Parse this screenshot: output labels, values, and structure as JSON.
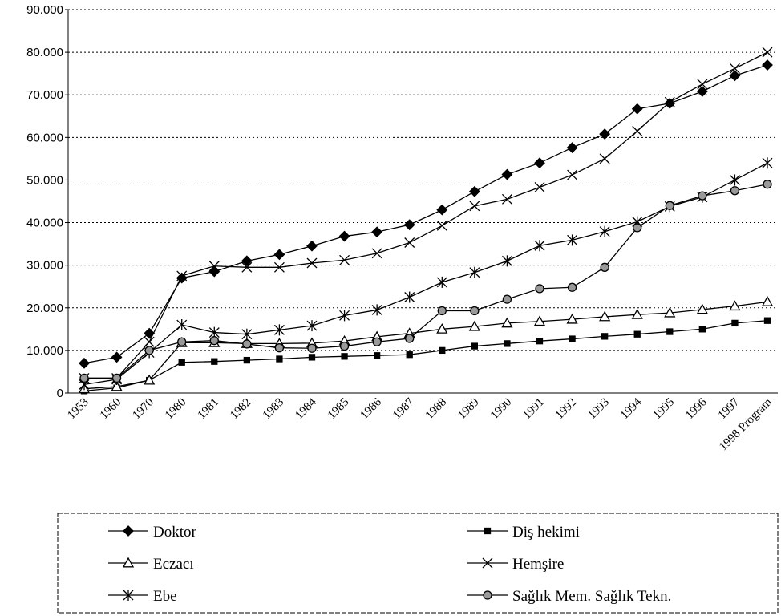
{
  "chart_data": {
    "type": "line",
    "categories": [
      "1953",
      "1960",
      "1970",
      "1980",
      "1981",
      "1982",
      "1983",
      "1984",
      "1985",
      "1986",
      "1987",
      "1988",
      "1989",
      "1990",
      "1991",
      "1992",
      "1993",
      "1994",
      "1995",
      "1996",
      "1997",
      "1998 Program"
    ],
    "ylim": [
      0,
      90000
    ],
    "yticks": [
      0,
      {
        "value": 10000,
        "label": "10.000"
      },
      {
        "value": 20000,
        "label": "20.000"
      },
      {
        "value": 30000,
        "label": "30.000"
      },
      {
        "value": 40000,
        "label": "40.000"
      },
      {
        "value": 50000,
        "label": "50.000"
      },
      {
        "value": 60000,
        "label": "60.000"
      },
      {
        "value": 70000,
        "label": "70.000"
      },
      {
        "value": 80000,
        "label": "80.000"
      },
      {
        "value": 90000,
        "label": "90.000"
      }
    ],
    "grid": true,
    "series": [
      {
        "name": "Doktor",
        "color": "#000000",
        "marker": "diamond",
        "values": [
          7000,
          8400,
          14000,
          27000,
          28500,
          31000,
          32500,
          34500,
          36800,
          37800,
          39500,
          43000,
          47300,
          51300,
          54000,
          57600,
          60800,
          66700,
          68000,
          70800,
          74500,
          77000
        ]
      },
      {
        "name": "Diş hekimi",
        "color": "#000000",
        "marker": "square",
        "values": [
          500,
          1200,
          3000,
          7200,
          7400,
          7700,
          8000,
          8400,
          8600,
          8800,
          9000,
          10000,
          11000,
          11600,
          12200,
          12700,
          13300,
          13800,
          14400,
          15000,
          16400,
          17000
        ]
      },
      {
        "name": "Eczacı",
        "color": "#000000",
        "marker": "triangle",
        "values": [
          1000,
          1500,
          3000,
          11800,
          11800,
          11600,
          11600,
          11700,
          12200,
          13200,
          14000,
          15000,
          15600,
          16400,
          16800,
          17300,
          17900,
          18400,
          18800,
          19600,
          20400,
          21400
        ]
      },
      {
        "name": "Hemşire",
        "color": "#000000",
        "marker": "x",
        "values": [
          3500,
          3500,
          12000,
          27500,
          29800,
          29500,
          29500,
          30500,
          31200,
          32800,
          35300,
          39300,
          43900,
          45500,
          48300,
          51200,
          55000,
          61500,
          68300,
          72500,
          76200,
          80000
        ]
      },
      {
        "name": "Ebe",
        "color": "#000000",
        "marker": "star",
        "values": [
          2000,
          3200,
          9500,
          16000,
          14200,
          13800,
          14800,
          15800,
          18200,
          19500,
          22500,
          26000,
          28300,
          31000,
          34600,
          35900,
          37900,
          40200,
          43800,
          46000,
          50000,
          54000
        ]
      },
      {
        "name": "Sağlık Mem. Sağlık Tekn.",
        "color": "#000000",
        "marker": "circle",
        "values": [
          3500,
          3500,
          10000,
          12000,
          12300,
          11500,
          10600,
          10500,
          11000,
          12000,
          12800,
          19300,
          19300,
          22000,
          24500,
          24800,
          29500,
          38800,
          44000,
          46300,
          47500,
          49000
        ]
      }
    ]
  }
}
